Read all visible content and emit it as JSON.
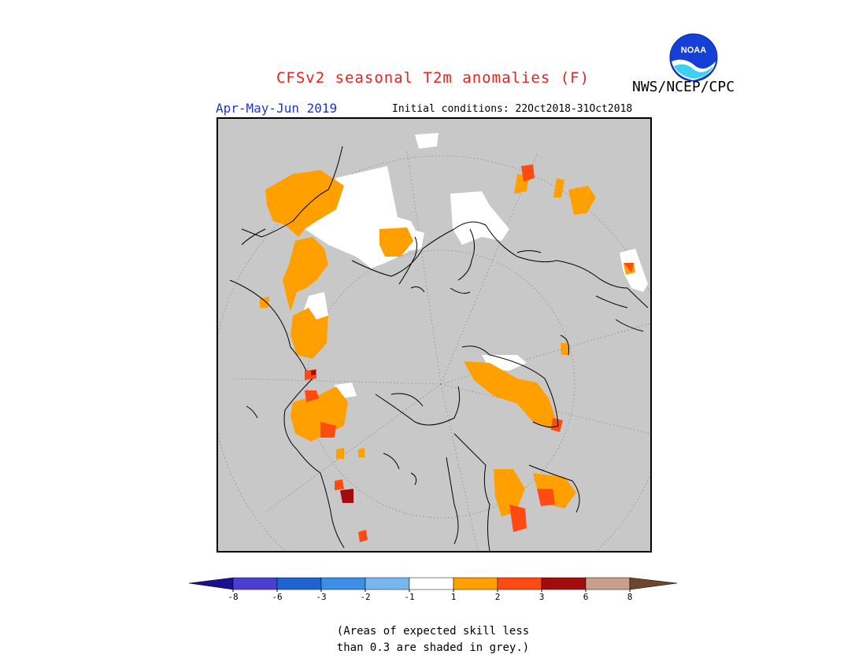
{
  "header": {
    "title": "CFSv2 seasonal T2m anomalies (F)",
    "org": "NWS/NCEP/CPC",
    "season": "Apr-May-Jun 2019",
    "initial_conditions": "Initial conditions: 22Oct2018-31Oct2018",
    "logo_text": "NOAA",
    "title_color": "#e8221d",
    "season_color": "#1f35d6"
  },
  "legend": {
    "tick_labels": [
      "-8",
      "-6",
      "-3",
      "-2",
      "-1",
      "1",
      "2",
      "3",
      "6",
      "8"
    ],
    "colors": {
      "lt_-8": "#1d0f8f",
      "-8_-6": "#4a3fcf",
      "-6_-3": "#1f63d0",
      "-3_-2": "#3d8ee8",
      "-2_-1": "#79b6ef",
      "-1_1": "#ffffff",
      "1_2": "#ffa000",
      "2_3": "#ff4a12",
      "3_6": "#a30c0c",
      "6_8": "#c9a08e",
      "gt_8": "#70452e"
    }
  },
  "map": {
    "projection": "polar-stereographic-north",
    "background_color": "#c8c8c8",
    "low_skill_color": "#c8c8c8"
  },
  "footnote": {
    "line1": "(Areas of expected skill less",
    "line2": "than 0.3 are shaded in grey.)"
  }
}
